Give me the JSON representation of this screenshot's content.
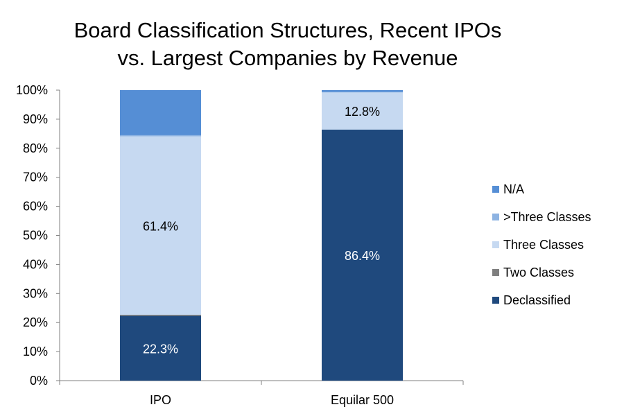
{
  "chart_data": {
    "type": "bar",
    "stacked": true,
    "title": [
      "Board Classification Structures, Recent IPOs",
      "vs. Largest Companies by Revenue"
    ],
    "categories": [
      "IPO",
      "Equilar 500"
    ],
    "ylim": [
      0,
      100
    ],
    "yticks": [
      "0%",
      "10%",
      "20%",
      "30%",
      "40%",
      "50%",
      "60%",
      "70%",
      "80%",
      "90%",
      "100%"
    ],
    "legend_position": "right",
    "series": [
      {
        "name": "Declassified",
        "color": "#1f497d",
        "values": [
          22.3,
          86.4
        ],
        "labels": [
          "22.3%",
          "86.4%"
        ],
        "label_color": "#ffffff"
      },
      {
        "name": "Two Classes",
        "color": "#7f7f7f",
        "values": [
          0.4,
          0.0
        ],
        "labels": [
          "",
          ""
        ],
        "label_color": "#000000"
      },
      {
        "name": "Three Classes",
        "color": "#c6d9f1",
        "values": [
          61.4,
          12.8
        ],
        "labels": [
          "61.4%",
          "12.8%"
        ],
        "label_color": "#000000"
      },
      {
        "name": ">Three Classes",
        "color": "#8db3e2",
        "values": [
          0.4,
          0.2
        ],
        "labels": [
          "",
          ""
        ],
        "label_color": "#000000"
      },
      {
        "name": "N/A",
        "color": "#558ed5",
        "values": [
          15.5,
          0.6
        ],
        "labels": [
          "",
          ""
        ],
        "label_color": "#000000"
      }
    ]
  }
}
